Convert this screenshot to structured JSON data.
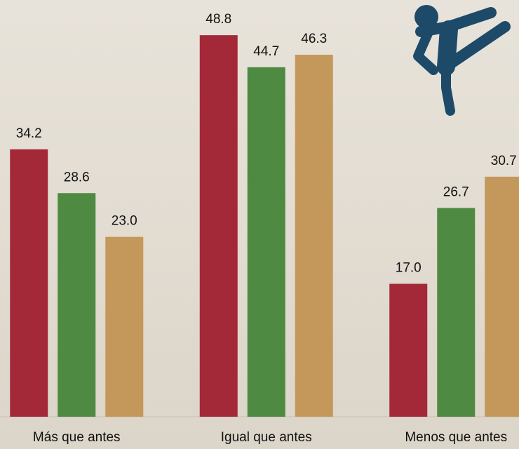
{
  "chart_data": {
    "type": "bar",
    "categories": [
      "Más que antes",
      "Igual que antes",
      "Menos que antes"
    ],
    "series": [
      {
        "color": "#a32838",
        "values": [
          34.2,
          48.8,
          17.0
        ],
        "value_labels": [
          "34.2",
          "48.8",
          "17.0"
        ]
      },
      {
        "color": "#4e8a42",
        "values": [
          28.6,
          44.7,
          26.7
        ],
        "value_labels": [
          "28.6",
          "44.7",
          "26.7"
        ]
      },
      {
        "color": "#c4975a",
        "values": [
          23.0,
          46.3,
          30.7
        ],
        "value_labels": [
          "23.0",
          "46.3",
          "30.7"
        ]
      }
    ],
    "ylim": [
      0,
      53.3
    ]
  }
}
